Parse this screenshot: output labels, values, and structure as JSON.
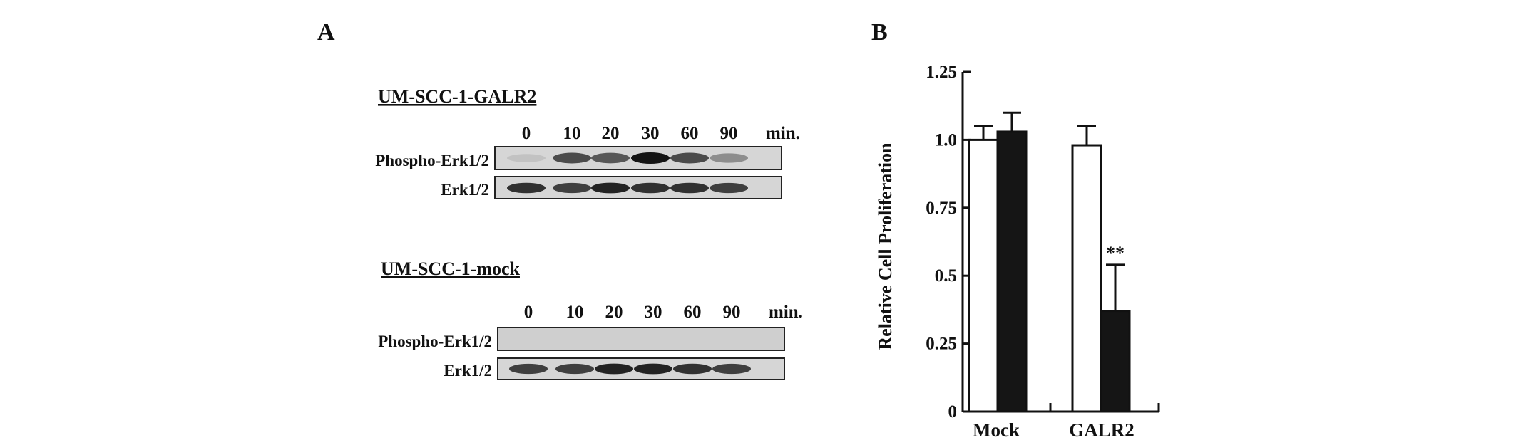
{
  "panel_a": {
    "letter": "A",
    "blocks": [
      {
        "title": "UM-SCC-1-GALR2",
        "lanes": [
          "0",
          "10",
          "20",
          "30",
          "60",
          "90"
        ],
        "unit": "min.",
        "rows": [
          {
            "label": "Phospho-Erk1/2",
            "band_intensity": [
              0.15,
              0.8,
              0.75,
              1.0,
              0.8,
              0.5
            ]
          },
          {
            "label": "Erk1/2",
            "band_intensity": [
              0.9,
              0.85,
              0.95,
              0.9,
              0.9,
              0.85
            ]
          }
        ]
      },
      {
        "title": "UM-SCC-1-mock",
        "lanes": [
          "0",
          "10",
          "20",
          "30",
          "60",
          "90"
        ],
        "unit": "min.",
        "rows": [
          {
            "label": "Phospho-Erk1/2",
            "band_intensity": [
              0,
              0,
              0,
              0,
              0,
              0
            ]
          },
          {
            "label": "Erk1/2",
            "band_intensity": [
              0.85,
              0.85,
              0.95,
              0.95,
              0.9,
              0.85
            ]
          }
        ]
      }
    ]
  },
  "panel_b": {
    "letter": "B",
    "chart_data": {
      "type": "bar",
      "categories": [
        "Mock",
        "GALR2"
      ],
      "series": [
        {
          "fill": "#ffffff",
          "values": [
            1.0,
            0.98
          ],
          "errors": [
            0.05,
            0.07
          ]
        },
        {
          "fill": "#151515",
          "values": [
            1.03,
            0.37
          ],
          "errors": [
            0.07,
            0.17
          ]
        }
      ],
      "ylabel": "Relative Cell Proliferation",
      "ylim": [
        0,
        1.25
      ],
      "yticks": [
        "0",
        "0.25",
        "0.5",
        "0.75",
        "1.0",
        "1.25"
      ],
      "ytick_values": [
        0,
        0.25,
        0.5,
        0.75,
        1.0,
        1.25
      ],
      "annotations": [
        {
          "text": "**",
          "category": "GALR2",
          "series": 1
        }
      ]
    }
  }
}
